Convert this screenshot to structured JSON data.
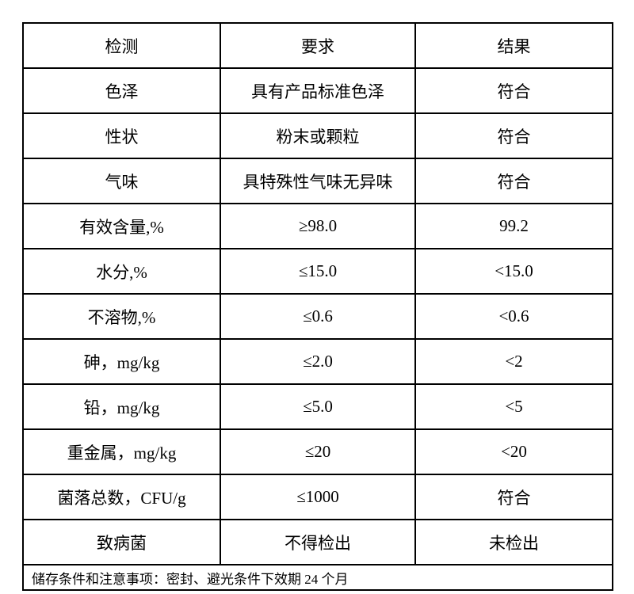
{
  "document": {
    "type": "inspection-specification-table",
    "colors": {
      "background": "#ffffff",
      "border": "#000000",
      "text": "#000000"
    },
    "table": {
      "headers": [
        "检测",
        "要求",
        "结果"
      ],
      "rows": [
        [
          "色泽",
          "具有产品标准色泽",
          "符合"
        ],
        [
          "性状",
          "粉末或颗粒",
          "符合"
        ],
        [
          "气味",
          "具特殊性气味无异味",
          "符合"
        ],
        [
          "有效含量,%",
          "≥98.0",
          "99.2"
        ],
        [
          "水分,%",
          "≤15.0",
          "<15.0"
        ],
        [
          "不溶物,%",
          "≤0.6",
          "<0.6"
        ],
        [
          "砷，mg/kg",
          "≤2.0",
          "<2"
        ],
        [
          "铅，mg/kg",
          "≤5.0",
          "<5"
        ],
        [
          "重金属，mg/kg",
          "≤20",
          "<20"
        ],
        [
          "菌落总数，CFU/g",
          "≤1000",
          "符合"
        ],
        [
          "致病菌",
          "不得检出",
          "未检出"
        ]
      ],
      "footer": "储存条件和注意事项：密封、避光条件下效期 24 个月"
    }
  }
}
